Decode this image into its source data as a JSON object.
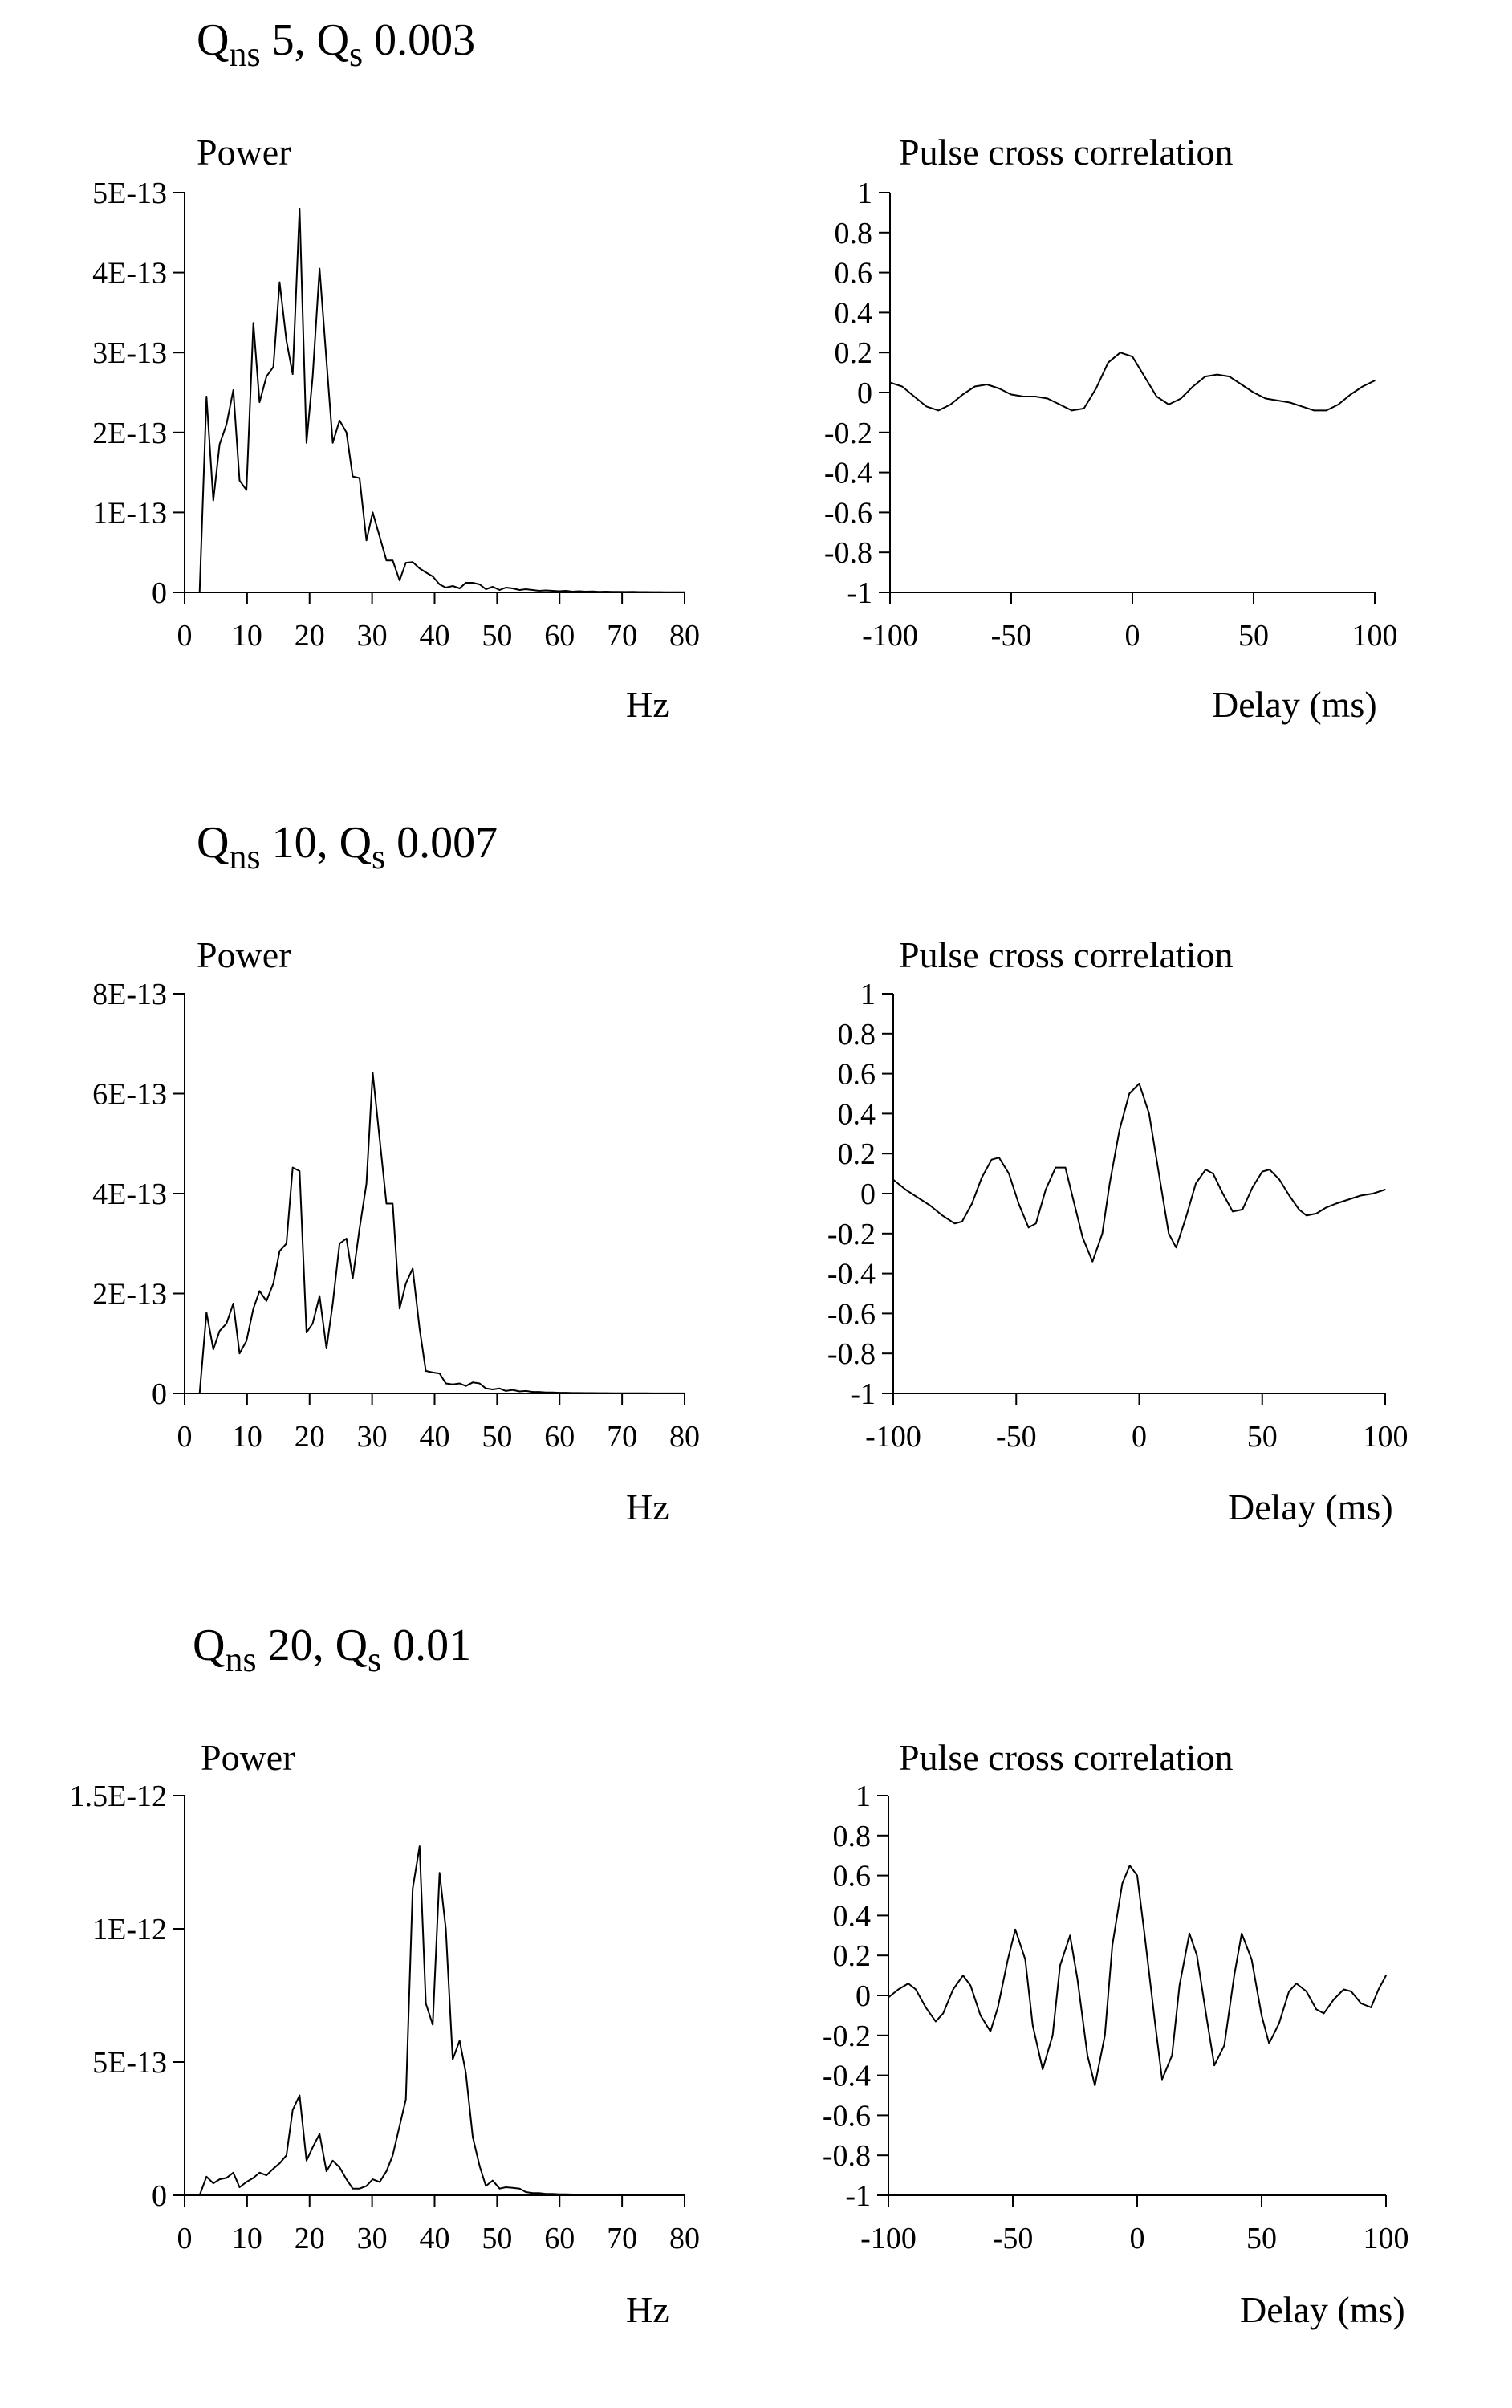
{
  "chart_data": [
    {
      "type": "line",
      "panel_label": {
        "prefix": "Q",
        "sub1": "ns",
        "mid": " 5,  Q",
        "sub2": "s",
        "suffix": " 0.003"
      },
      "title": "Power",
      "xlabel": "Hz",
      "ylabel": "",
      "xlim": [
        0,
        80
      ],
      "ylim": [
        0,
        5e-13
      ],
      "xticks": [
        0,
        10,
        20,
        30,
        40,
        50,
        60,
        70,
        80
      ],
      "yticks": [
        0,
        1e-13,
        2e-13,
        3e-13,
        4e-13,
        5e-13
      ],
      "ytick_labels": [
        "0",
        "1E-13",
        "2E-13",
        "3E-13",
        "4E-13",
        "5E-13"
      ],
      "x": [
        2.4,
        3.5,
        4.6,
        5.6,
        6.7,
        7.8,
        8.8,
        9.9,
        11.0,
        12.0,
        13.1,
        14.2,
        15.2,
        16.3,
        17.3,
        18.4,
        19.5,
        20.5,
        21.6,
        22.7,
        23.7,
        24.8,
        25.9,
        26.9,
        28.0,
        29.1,
        30.1,
        31.2,
        32.3,
        33.3,
        34.4,
        35.4,
        36.5,
        37.6,
        38.6,
        39.7,
        40.8,
        41.8,
        42.9,
        44.0,
        45.0,
        46.1,
        47.2,
        48.2,
        49.3,
        50.4,
        51.4,
        52.5,
        53.6,
        54.6,
        55.7,
        56.7,
        57.8,
        58.9,
        59.9,
        61.0,
        62.1,
        63.1,
        64.2,
        65.3,
        66.3,
        67.4,
        68.5,
        69.5,
        70.6,
        71.7,
        72.7,
        73.8,
        74.8,
        75.9,
        77.0,
        78.0,
        79.1,
        80.0
      ],
      "y": [
        0,
        2.45e-13,
        1.15e-13,
        1.85e-13,
        2.1e-13,
        2.53e-13,
        1.4e-13,
        1.28e-13,
        3.37e-13,
        2.38e-13,
        2.7e-13,
        2.82e-13,
        3.88e-13,
        3.15e-13,
        2.73e-13,
        4.8e-13,
        1.87e-13,
        2.7e-13,
        4.05e-13,
        2.9e-13,
        1.87e-13,
        2.15e-13,
        2e-13,
        1.45e-13,
        1.43e-13,
        6.5e-14,
        1e-13,
        7e-14,
        4e-14,
        4e-14,
        1.5e-14,
        3.7e-14,
        3.8e-14,
        3e-14,
        2.5e-14,
        2e-14,
        1e-14,
        6e-15,
        8e-15,
        5e-15,
        1.2e-14,
        1.2e-14,
        1e-14,
        4e-15,
        7e-15,
        3e-15,
        6e-15,
        5e-15,
        3e-15,
        4e-15,
        3e-15,
        2e-15,
        2.5e-15,
        2e-15,
        1.5e-15,
        2e-15,
        1e-15,
        1.5e-15,
        1e-15,
        1.2e-15,
        8e-16,
        1e-15,
        8e-16,
        7e-16,
        6e-16,
        7e-16,
        5e-16,
        5e-16,
        4e-16,
        4e-16,
        3e-16,
        3e-16,
        2e-16,
        2e-16
      ]
    },
    {
      "type": "line",
      "title": "Pulse cross correlation",
      "xlabel": "Delay (ms)",
      "ylabel": "",
      "xlim": [
        -100,
        100
      ],
      "ylim": [
        -1,
        1
      ],
      "xticks": [
        -100,
        -50,
        0,
        50,
        100
      ],
      "yticks": [
        -1,
        -0.8,
        -0.6,
        -0.4,
        -0.2,
        0,
        0.2,
        0.4,
        0.6,
        0.8,
        1
      ],
      "ytick_labels": [
        "-1",
        "-0.8",
        "-0.6",
        "-0.4",
        "-0.2",
        "0",
        "0.2",
        "0.4",
        "0.6",
        "0.8",
        "1"
      ],
      "x": [
        -100,
        -95,
        -90,
        -85,
        -80,
        -75,
        -70,
        -65,
        -60,
        -55,
        -50,
        -45,
        -40,
        -35,
        -30,
        -25,
        -20,
        -15,
        -10,
        -5,
        0,
        5,
        10,
        15,
        20,
        25,
        30,
        35,
        40,
        45,
        50,
        55,
        60,
        65,
        70,
        75,
        80,
        85,
        90,
        95,
        100
      ],
      "y": [
        0.05,
        0.03,
        -0.02,
        -0.07,
        -0.09,
        -0.06,
        -0.01,
        0.03,
        0.04,
        0.02,
        -0.01,
        -0.02,
        -0.02,
        -0.03,
        -0.06,
        -0.09,
        -0.08,
        0.02,
        0.15,
        0.2,
        0.18,
        0.08,
        -0.02,
        -0.06,
        -0.03,
        0.03,
        0.08,
        0.09,
        0.08,
        0.04,
        0.0,
        -0.03,
        -0.04,
        -0.05,
        -0.07,
        -0.09,
        -0.09,
        -0.06,
        -0.01,
        0.03,
        0.06
      ]
    },
    {
      "type": "line",
      "panel_label": {
        "prefix": "Q",
        "sub1": "ns",
        "mid": " 10,  Q",
        "sub2": "s",
        "suffix": " 0.007"
      },
      "title": "Power",
      "xlabel": "Hz",
      "ylabel": "",
      "xlim": [
        0,
        80
      ],
      "ylim": [
        0,
        8e-13
      ],
      "xticks": [
        0,
        10,
        20,
        30,
        40,
        50,
        60,
        70,
        80
      ],
      "yticks": [
        0,
        2e-13,
        4e-13,
        6e-13,
        8e-13
      ],
      "ytick_labels": [
        "0",
        "2E-13",
        "4E-13",
        "6E-13",
        "8E-13"
      ],
      "x": [
        2.4,
        3.5,
        4.6,
        5.6,
        6.7,
        7.8,
        8.8,
        9.9,
        11.0,
        12.0,
        13.1,
        14.2,
        15.2,
        16.3,
        17.3,
        18.4,
        19.5,
        20.5,
        21.6,
        22.7,
        23.7,
        24.8,
        25.9,
        26.9,
        28.0,
        29.1,
        30.1,
        31.2,
        32.3,
        33.3,
        34.4,
        35.4,
        36.5,
        37.6,
        38.6,
        39.7,
        40.8,
        41.8,
        42.9,
        44.0,
        45.0,
        46.1,
        47.2,
        48.2,
        49.3,
        50.4,
        51.4,
        52.5,
        53.6,
        54.6,
        55.7,
        56.7,
        57.8,
        58.9,
        59.9,
        61.0,
        62.1,
        63.1,
        64.2,
        65.3,
        66.3,
        67.4,
        68.5,
        69.5,
        70.6,
        71.7,
        72.7,
        73.8,
        74.8,
        75.9,
        77.0,
        78.0,
        79.1,
        80.0
      ],
      "y": [
        0,
        1.62e-13,
        8.8e-14,
        1.25e-13,
        1.4e-13,
        1.8e-13,
        8e-14,
        1.05e-13,
        1.7e-13,
        2.05e-13,
        1.85e-13,
        2.2e-13,
        2.85e-13,
        3e-13,
        4.52e-13,
        4.45e-13,
        1.22e-13,
        1.4e-13,
        1.95e-13,
        9e-14,
        1.8e-13,
        3e-13,
        3.1e-13,
        2.3e-13,
        3.3e-13,
        4.2e-13,
        6.42e-13,
        5.1e-13,
        3.8e-13,
        3.8e-13,
        1.7e-13,
        2.2e-13,
        2.5e-13,
        1.3e-13,
        4.5e-14,
        4.2e-14,
        4e-14,
        2e-14,
        1.8e-14,
        2e-14,
        1.5e-14,
        2.2e-14,
        2e-14,
        1e-14,
        8e-15,
        1e-14,
        5e-15,
        7e-15,
        4e-15,
        5e-15,
        3e-15,
        3e-15,
        2e-15,
        2e-15,
        1.5e-15,
        1.5e-15,
        1e-15,
        1e-15,
        8e-16,
        8e-16,
        6e-16,
        6e-16,
        5e-16,
        5e-16,
        4e-16,
        4e-16,
        3e-16,
        3e-16,
        2e-16,
        2e-16,
        2e-16,
        1e-16,
        1e-16,
        1e-16
      ]
    },
    {
      "type": "line",
      "title": "Pulse cross correlation",
      "xlabel": "Delay (ms)",
      "ylabel": "",
      "xlim": [
        -100,
        100
      ],
      "ylim": [
        -1,
        1
      ],
      "xticks": [
        -100,
        -50,
        0,
        50,
        100
      ],
      "yticks": [
        -1,
        -0.8,
        -0.6,
        -0.4,
        -0.2,
        0,
        0.2,
        0.4,
        0.6,
        0.8,
        1
      ],
      "ytick_labels": [
        "-1",
        "-0.8",
        "-0.6",
        "-0.4",
        "-0.2",
        "0",
        "0.2",
        "0.4",
        "0.6",
        "0.8",
        "1"
      ],
      "x": [
        -100,
        -95,
        -90,
        -85,
        -80,
        -75,
        -72,
        -68,
        -64,
        -60,
        -57,
        -53,
        -49,
        -45,
        -42,
        -38,
        -34,
        -30,
        -27,
        -23,
        -19,
        -15,
        -12,
        -8,
        -4,
        0,
        4,
        8,
        12,
        15,
        19,
        23,
        27,
        30,
        34,
        38,
        42,
        46,
        50,
        53,
        57,
        61,
        65,
        68,
        72,
        76,
        80,
        85,
        90,
        95,
        100
      ],
      "y": [
        0.07,
        0.02,
        -0.02,
        -0.06,
        -0.11,
        -0.15,
        -0.14,
        -0.05,
        0.08,
        0.17,
        0.18,
        0.1,
        -0.05,
        -0.17,
        -0.15,
        0.02,
        0.13,
        0.13,
        -0.02,
        -0.22,
        -0.34,
        -0.2,
        0.05,
        0.32,
        0.5,
        0.55,
        0.4,
        0.1,
        -0.2,
        -0.27,
        -0.12,
        0.05,
        0.12,
        0.1,
        0.0,
        -0.09,
        -0.08,
        0.03,
        0.11,
        0.12,
        0.07,
        -0.01,
        -0.08,
        -0.11,
        -0.1,
        -0.07,
        -0.05,
        -0.03,
        -0.01,
        0.0,
        0.02
      ]
    },
    {
      "type": "line",
      "panel_label": {
        "prefix": "Q",
        "sub1": "ns",
        "mid": " 20,  Q",
        "sub2": "s",
        "suffix": " 0.01"
      },
      "title": "Power",
      "xlabel": "Hz",
      "ylabel": "",
      "xlim": [
        0,
        80
      ],
      "ylim": [
        0,
        1.5e-12
      ],
      "xticks": [
        0,
        10,
        20,
        30,
        40,
        50,
        60,
        70,
        80
      ],
      "yticks": [
        0,
        5e-13,
        1e-12,
        1.5e-12
      ],
      "ytick_labels": [
        "0",
        "5E-13",
        "1E-12",
        "1.5E-12"
      ],
      "x": [
        2.4,
        3.5,
        4.6,
        5.6,
        6.7,
        7.8,
        8.8,
        9.9,
        11.0,
        12.0,
        13.1,
        14.2,
        15.2,
        16.3,
        17.3,
        18.4,
        19.5,
        20.5,
        21.6,
        22.7,
        23.7,
        24.8,
        25.9,
        26.9,
        28.0,
        29.1,
        30.1,
        31.2,
        32.3,
        33.3,
        34.4,
        35.4,
        36.5,
        37.6,
        38.6,
        39.7,
        40.8,
        41.8,
        42.9,
        44.0,
        45.0,
        46.1,
        47.2,
        48.2,
        49.3,
        50.4,
        51.4,
        52.5,
        53.6,
        54.6,
        55.7,
        56.7,
        57.8,
        58.9,
        59.9,
        61.0,
        62.1,
        63.1,
        64.2,
        65.3,
        66.3,
        67.4,
        68.5,
        69.5,
        70.6,
        71.7,
        72.7,
        73.8,
        74.8,
        75.9,
        77.0,
        78.0,
        79.1,
        80.0
      ],
      "y": [
        0,
        7e-14,
        4.5e-14,
        6e-14,
        6.5e-14,
        8.5e-14,
        3e-14,
        5e-14,
        6.5e-14,
        8.5e-14,
        7.5e-14,
        1e-13,
        1.2e-13,
        1.5e-13,
        3.2e-13,
        3.75e-13,
        1.3e-13,
        1.8e-13,
        2.3e-13,
        9e-14,
        1.3e-13,
        1.05e-13,
        6e-14,
        2.5e-14,
        2.5e-14,
        3.5e-14,
        6e-14,
        5e-14,
        9e-14,
        1.5e-13,
        2.6e-13,
        3.6e-13,
        1.15e-12,
        1.31e-12,
        7.2e-13,
        6.4e-13,
        1.21e-12,
        1e-12,
        5.1e-13,
        5.8e-13,
        4.6e-13,
        2.2e-13,
        1.1e-13,
        3.5e-14,
        5.5e-14,
        2.5e-14,
        3e-14,
        2.8e-14,
        2.5e-14,
        1.2e-14,
        8e-15,
        8e-15,
        5e-15,
        5e-15,
        4e-15,
        4e-15,
        3e-15,
        3e-15,
        2e-15,
        2e-15,
        2e-15,
        1.5e-15,
        1.5e-15,
        1e-15,
        1e-15,
        1e-15,
        8e-16,
        8e-16,
        6e-16,
        6e-16,
        5e-16,
        5e-16,
        4e-16,
        4e-16
      ]
    },
    {
      "type": "line",
      "title": "Pulse cross correlation",
      "xlabel": "Delay (ms)",
      "ylabel": "",
      "xlim": [
        -100,
        100
      ],
      "ylim": [
        -1,
        1
      ],
      "xticks": [
        -100,
        -50,
        0,
        50,
        100
      ],
      "yticks": [
        -1,
        -0.8,
        -0.6,
        -0.4,
        -0.2,
        0,
        0.2,
        0.4,
        0.6,
        0.8,
        1
      ],
      "ytick_labels": [
        "-1",
        "-0.8",
        "-0.6",
        "-0.4",
        "-0.2",
        "0",
        "0.2",
        "0.4",
        "0.6",
        "0.8",
        "1"
      ],
      "x": [
        -100,
        -96,
        -92,
        -89,
        -85,
        -81,
        -78,
        -74,
        -70,
        -67,
        -63,
        -59,
        -56,
        -52,
        -49,
        -45,
        -42,
        -38,
        -34,
        -31,
        -27,
        -24,
        -20,
        -17,
        -13,
        -10,
        -6,
        -3,
        0,
        3,
        7,
        10,
        14,
        17,
        21,
        24,
        28,
        31,
        35,
        39,
        42,
        46,
        50,
        53,
        57,
        61,
        64,
        68,
        72,
        75,
        79,
        83,
        86,
        90,
        94,
        97,
        100
      ],
      "y": [
        -0.01,
        0.03,
        0.06,
        0.03,
        -0.06,
        -0.13,
        -0.09,
        0.03,
        0.1,
        0.05,
        -0.1,
        -0.18,
        -0.06,
        0.18,
        0.33,
        0.18,
        -0.15,
        -0.37,
        -0.2,
        0.15,
        0.3,
        0.08,
        -0.3,
        -0.45,
        -0.2,
        0.25,
        0.56,
        0.65,
        0.6,
        0.3,
        -0.12,
        -0.42,
        -0.3,
        0.05,
        0.31,
        0.2,
        -0.12,
        -0.35,
        -0.25,
        0.1,
        0.31,
        0.18,
        -0.1,
        -0.24,
        -0.14,
        0.02,
        0.06,
        0.02,
        -0.07,
        -0.09,
        -0.02,
        0.03,
        0.02,
        -0.04,
        -0.06,
        0.03,
        0.1
      ]
    }
  ]
}
